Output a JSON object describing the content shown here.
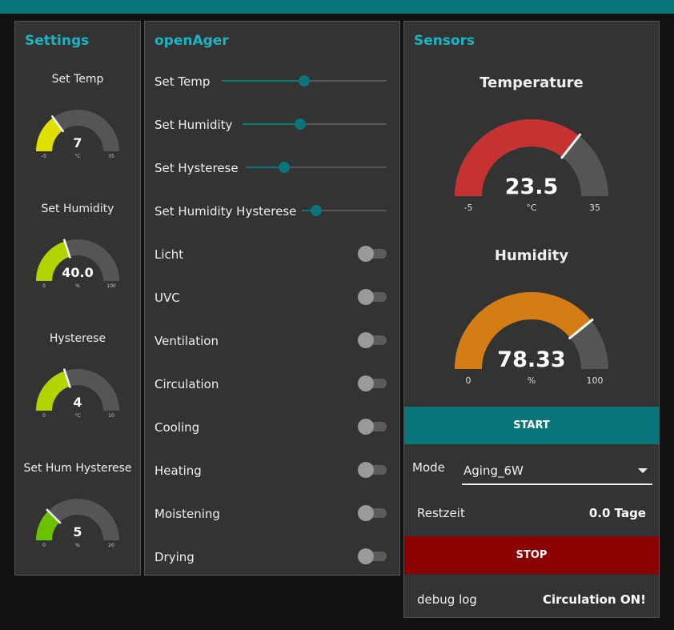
{
  "colors": {
    "accent": "#097479",
    "title": "#1bb4c3",
    "stop": "#8b0000"
  },
  "settings": {
    "title": "Settings",
    "gauges": [
      {
        "label": "Set Temp",
        "value": "7",
        "unit": "°C",
        "min": "-5",
        "max": "35",
        "num": 7,
        "lo": -5,
        "hi": 35,
        "color": "#e0e000"
      },
      {
        "label": "Set Humidity",
        "value": "40.0",
        "unit": "%",
        "min": "0",
        "max": "100",
        "num": 40,
        "lo": 0,
        "hi": 100,
        "color": "#b2d300"
      },
      {
        "label": "Hysterese",
        "value": "4",
        "unit": "°C",
        "min": "0",
        "max": "10",
        "num": 4,
        "lo": 0,
        "hi": 10,
        "color": "#b2d300"
      },
      {
        "label": "Set Hum Hysterese",
        "value": "5",
        "unit": "%",
        "min": "0",
        "max": "20",
        "num": 5,
        "lo": 0,
        "hi": 20,
        "color": "#69c200"
      }
    ]
  },
  "openager": {
    "title": "openAger",
    "sliders": [
      {
        "label": "Set Temp",
        "level": 0.5
      },
      {
        "label": "Set Humidity",
        "level": 0.4
      },
      {
        "label": "Set Hysterese",
        "level": 0.27
      },
      {
        "label": "Set Humidity Hysterese",
        "level": 0.17
      }
    ],
    "switches": [
      {
        "label": "Licht",
        "on": false
      },
      {
        "label": "UVC",
        "on": false
      },
      {
        "label": "Ventilation",
        "on": false
      },
      {
        "label": "Circulation",
        "on": false
      },
      {
        "label": "Cooling",
        "on": false
      },
      {
        "label": "Heating",
        "on": false
      },
      {
        "label": "Moistening",
        "on": false
      },
      {
        "label": "Drying",
        "on": false
      }
    ]
  },
  "sensors": {
    "title": "Sensors",
    "temperature": {
      "title": "Temperature",
      "value": "23.5",
      "unit": "°C",
      "min": "-5",
      "max": "35",
      "num": 23.5,
      "lo": -5,
      "hi": 35,
      "color": "#c43232"
    },
    "humidity": {
      "title": "Humidity",
      "value": "78.33",
      "unit": "%",
      "min": "0",
      "max": "100",
      "num": 78.33,
      "lo": 0,
      "hi": 100,
      "color": "#d47d14"
    },
    "start_label": "START",
    "mode_label": "Mode",
    "mode_value": "Aging_6W",
    "restzeit_label": "Restzeit",
    "restzeit_value": "0.0 Tage",
    "stop_label": "STOP",
    "debug_label": "debug log",
    "debug_value": "Circulation ON!"
  }
}
